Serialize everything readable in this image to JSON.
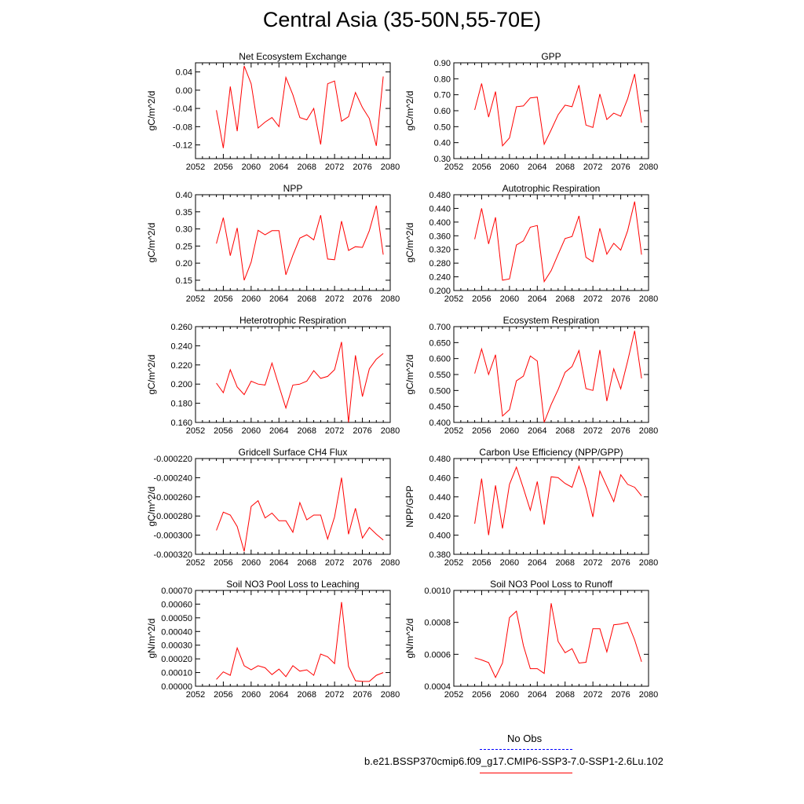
{
  "figure": {
    "title": "Central Asia (35-50N,55-70E)"
  },
  "legend": {
    "entries": [
      {
        "label": "No Obs",
        "color": "#0000ff",
        "dash": "dashed"
      },
      {
        "label": "b.e21.BSSP370cmip6.f09_g17.CMIP6-SSP3-7.0-SSP1-2.6Lu.102",
        "color": "#ff0000",
        "dash": "solid"
      }
    ]
  },
  "chart_data": [
    {
      "type": "line",
      "title": "Net Ecosystem Exchange",
      "ylabel": "gC/m^2/d",
      "xlim": [
        2052,
        2080
      ],
      "xticks": [
        "2052",
        "2056",
        "2060",
        "2064",
        "2068",
        "2072",
        "2076",
        "2080"
      ],
      "ylim": [
        -0.15,
        0.06
      ],
      "yticks": [
        "0.04",
        "0.00",
        "-0.04",
        "-0.08",
        "-0.12"
      ],
      "ytick_values": [
        0.04,
        0.0,
        -0.04,
        -0.08,
        -0.12
      ],
      "x": [
        2055,
        2056,
        2057,
        2058,
        2059,
        2060,
        2061,
        2062,
        2063,
        2064,
        2065,
        2066,
        2067,
        2068,
        2069,
        2070,
        2071,
        2072,
        2073,
        2074,
        2075,
        2076,
        2077,
        2078,
        2079
      ],
      "series": [
        {
          "name": "b.e21.BSSP370cmip6.f09_g17.CMIP6-SSP3-7.0-SSP1-2.6Lu.102",
          "values": [
            -0.044,
            -0.127,
            0.008,
            -0.09,
            0.053,
            0.014,
            -0.083,
            -0.07,
            -0.06,
            -0.08,
            0.028,
            -0.01,
            -0.06,
            -0.065,
            -0.04,
            -0.119,
            0.014,
            0.02,
            -0.068,
            -0.058,
            -0.005,
            -0.038,
            -0.062,
            -0.122,
            0.03
          ]
        }
      ]
    },
    {
      "type": "line",
      "title": "GPP",
      "ylabel": "gC/m^2/d",
      "xlim": [
        2052,
        2080
      ],
      "xticks": [
        "2052",
        "2056",
        "2060",
        "2064",
        "2068",
        "2072",
        "2076",
        "2080"
      ],
      "ylim": [
        0.3,
        0.9
      ],
      "yticks": [
        "0.90",
        "0.80",
        "0.70",
        "0.60",
        "0.50",
        "0.40",
        "0.30"
      ],
      "ytick_values": [
        0.9,
        0.8,
        0.7,
        0.6,
        0.5,
        0.4,
        0.3
      ],
      "x": [
        2055,
        2056,
        2057,
        2058,
        2059,
        2060,
        2061,
        2062,
        2063,
        2064,
        2065,
        2066,
        2067,
        2068,
        2069,
        2070,
        2071,
        2072,
        2073,
        2074,
        2075,
        2076,
        2077,
        2078,
        2079
      ],
      "series": [
        {
          "name": "b.e21.BSSP370cmip6.f09_g17.CMIP6-SSP3-7.0-SSP1-2.6Lu.102",
          "values": [
            0.605,
            0.77,
            0.56,
            0.72,
            0.38,
            0.43,
            0.625,
            0.63,
            0.68,
            0.685,
            0.39,
            0.48,
            0.575,
            0.635,
            0.625,
            0.76,
            0.51,
            0.495,
            0.705,
            0.545,
            0.585,
            0.565,
            0.675,
            0.83,
            0.525
          ]
        }
      ]
    },
    {
      "type": "line",
      "title": "NPP",
      "ylabel": "gC/m^2/d",
      "xlim": [
        2052,
        2080
      ],
      "xticks": [
        "2052",
        "2056",
        "2060",
        "2064",
        "2068",
        "2072",
        "2076",
        "2080"
      ],
      "ylim": [
        0.12,
        0.4
      ],
      "yticks": [
        "0.40",
        "0.35",
        "0.30",
        "0.25",
        "0.20",
        "0.15"
      ],
      "ytick_values": [
        0.4,
        0.35,
        0.3,
        0.25,
        0.2,
        0.15
      ],
      "x": [
        2055,
        2056,
        2057,
        2058,
        2059,
        2060,
        2061,
        2062,
        2063,
        2064,
        2065,
        2066,
        2067,
        2068,
        2069,
        2070,
        2071,
        2072,
        2073,
        2074,
        2075,
        2076,
        2077,
        2078,
        2079
      ],
      "series": [
        {
          "name": "b.e21.BSSP370cmip6.f09_g17.CMIP6-SSP3-7.0-SSP1-2.6Lu.102",
          "values": [
            0.257,
            0.333,
            0.222,
            0.303,
            0.15,
            0.203,
            0.296,
            0.283,
            0.295,
            0.295,
            0.166,
            0.223,
            0.273,
            0.283,
            0.268,
            0.34,
            0.212,
            0.21,
            0.323,
            0.237,
            0.248,
            0.246,
            0.295,
            0.368,
            0.225
          ]
        }
      ]
    },
    {
      "type": "line",
      "title": "Autotrophic Respiration",
      "ylabel": "gC/m^2/d",
      "xlim": [
        2052,
        2080
      ],
      "xticks": [
        "2052",
        "2056",
        "2060",
        "2064",
        "2068",
        "2072",
        "2076",
        "2080"
      ],
      "ylim": [
        0.2,
        0.48
      ],
      "yticks": [
        "0.480",
        "0.440",
        "0.400",
        "0.360",
        "0.320",
        "0.280",
        "0.240",
        "0.200"
      ],
      "ytick_values": [
        0.48,
        0.44,
        0.4,
        0.36,
        0.32,
        0.28,
        0.24,
        0.2
      ],
      "x": [
        2055,
        2056,
        2057,
        2058,
        2059,
        2060,
        2061,
        2062,
        2063,
        2064,
        2065,
        2066,
        2067,
        2068,
        2069,
        2070,
        2071,
        2072,
        2073,
        2074,
        2075,
        2076,
        2077,
        2078,
        2079
      ],
      "series": [
        {
          "name": "b.e21.BSSP370cmip6.f09_g17.CMIP6-SSP3-7.0-SSP1-2.6Lu.102",
          "values": [
            0.35,
            0.44,
            0.336,
            0.414,
            0.23,
            0.234,
            0.333,
            0.345,
            0.385,
            0.39,
            0.226,
            0.258,
            0.306,
            0.352,
            0.358,
            0.418,
            0.297,
            0.284,
            0.382,
            0.306,
            0.338,
            0.318,
            0.375,
            0.46,
            0.305
          ]
        }
      ]
    },
    {
      "type": "line",
      "title": "Heterotrophic Respiration",
      "ylabel": "gC/m^2/d",
      "xlim": [
        2052,
        2080
      ],
      "xticks": [
        "2052",
        "2056",
        "2060",
        "2064",
        "2068",
        "2072",
        "2076",
        "2080"
      ],
      "ylim": [
        0.16,
        0.26
      ],
      "yticks": [
        "0.260",
        "0.240",
        "0.220",
        "0.200",
        "0.180",
        "0.160"
      ],
      "ytick_values": [
        0.26,
        0.24,
        0.22,
        0.2,
        0.18,
        0.16
      ],
      "x": [
        2055,
        2056,
        2057,
        2058,
        2059,
        2060,
        2061,
        2062,
        2063,
        2064,
        2065,
        2066,
        2067,
        2068,
        2069,
        2070,
        2071,
        2072,
        2073,
        2074,
        2075,
        2076,
        2077,
        2078,
        2079
      ],
      "series": [
        {
          "name": "b.e21.BSSP370cmip6.f09_g17.CMIP6-SSP3-7.0-SSP1-2.6Lu.102",
          "values": [
            0.201,
            0.191,
            0.215,
            0.197,
            0.189,
            0.203,
            0.2,
            0.199,
            0.222,
            0.198,
            0.175,
            0.199,
            0.2,
            0.203,
            0.214,
            0.206,
            0.208,
            0.215,
            0.244,
            0.16,
            0.23,
            0.187,
            0.216,
            0.226,
            0.232
          ]
        }
      ]
    },
    {
      "type": "line",
      "title": "Ecosystem Respiration",
      "ylabel": "gC/m^2/d",
      "xlim": [
        2052,
        2080
      ],
      "xticks": [
        "2052",
        "2056",
        "2060",
        "2064",
        "2068",
        "2072",
        "2076",
        "2080"
      ],
      "ylim": [
        0.4,
        0.7
      ],
      "yticks": [
        "0.700",
        "0.650",
        "0.600",
        "0.550",
        "0.500",
        "0.450",
        "0.400"
      ],
      "ytick_values": [
        0.7,
        0.65,
        0.6,
        0.55,
        0.5,
        0.45,
        0.4
      ],
      "x": [
        2055,
        2056,
        2057,
        2058,
        2059,
        2060,
        2061,
        2062,
        2063,
        2064,
        2065,
        2066,
        2067,
        2068,
        2069,
        2070,
        2071,
        2072,
        2073,
        2074,
        2075,
        2076,
        2077,
        2078,
        2079
      ],
      "series": [
        {
          "name": "b.e21.BSSP370cmip6.f09_g17.CMIP6-SSP3-7.0-SSP1-2.6Lu.102",
          "values": [
            0.553,
            0.63,
            0.55,
            0.612,
            0.42,
            0.44,
            0.53,
            0.545,
            0.608,
            0.592,
            0.4,
            0.456,
            0.503,
            0.557,
            0.575,
            0.625,
            0.506,
            0.5,
            0.627,
            0.467,
            0.568,
            0.505,
            0.592,
            0.687,
            0.538
          ]
        }
      ]
    },
    {
      "type": "line",
      "title": "Gridcell Surface CH4 Flux",
      "ylabel": "gC/m^2/d",
      "xlim": [
        2052,
        2080
      ],
      "xticks": [
        "2052",
        "2056",
        "2060",
        "2064",
        "2068",
        "2072",
        "2076",
        "2080"
      ],
      "ylim": [
        -0.00032,
        -0.00022
      ],
      "yticks": [
        "-0.000220",
        "-0.000240",
        "-0.000260",
        "-0.000280",
        "-0.000300",
        "-0.000320"
      ],
      "ytick_values": [
        -0.00022,
        -0.00024,
        -0.00026,
        -0.00028,
        -0.0003,
        -0.00032
      ],
      "x": [
        2055,
        2056,
        2057,
        2058,
        2059,
        2060,
        2061,
        2062,
        2063,
        2064,
        2065,
        2066,
        2067,
        2068,
        2069,
        2070,
        2071,
        2072,
        2073,
        2074,
        2075,
        2076,
        2077,
        2078,
        2079
      ],
      "series": [
        {
          "name": "b.e21.BSSP370cmip6.f09_g17.CMIP6-SSP3-7.0-SSP1-2.6Lu.102",
          "values": [
            -0.000295,
            -0.000276,
            -0.000279,
            -0.000291,
            -0.000317,
            -0.00027,
            -0.000264,
            -0.000282,
            -0.000277,
            -0.000285,
            -0.000285,
            -0.000297,
            -0.000266,
            -0.000284,
            -0.000279,
            -0.000279,
            -0.000304,
            -0.000281,
            -0.00024,
            -0.000299,
            -0.000272,
            -0.000303,
            -0.000292,
            -0.000299,
            -0.000305
          ]
        }
      ]
    },
    {
      "type": "line",
      "title": "Carbon Use Efficiency (NPP/GPP)",
      "ylabel": "NPP/GPP",
      "xlim": [
        2052,
        2080
      ],
      "xticks": [
        "2052",
        "2056",
        "2060",
        "2064",
        "2068",
        "2072",
        "2076",
        "2080"
      ],
      "ylim": [
        0.38,
        0.48
      ],
      "yticks": [
        "0.480",
        "0.460",
        "0.440",
        "0.420",
        "0.400",
        "0.380"
      ],
      "ytick_values": [
        0.48,
        0.46,
        0.44,
        0.42,
        0.4,
        0.38
      ],
      "x": [
        2055,
        2056,
        2057,
        2058,
        2059,
        2060,
        2061,
        2062,
        2063,
        2064,
        2065,
        2066,
        2067,
        2068,
        2069,
        2070,
        2071,
        2072,
        2073,
        2074,
        2075,
        2076,
        2077,
        2078,
        2079
      ],
      "series": [
        {
          "name": "b.e21.BSSP370cmip6.f09_g17.CMIP6-SSP3-7.0-SSP1-2.6Lu.102",
          "values": [
            0.412,
            0.459,
            0.4,
            0.452,
            0.407,
            0.453,
            0.471,
            0.449,
            0.426,
            0.456,
            0.411,
            0.461,
            0.46,
            0.454,
            0.45,
            0.472,
            0.449,
            0.419,
            0.467,
            0.451,
            0.435,
            0.463,
            0.453,
            0.45,
            0.441
          ]
        }
      ]
    },
    {
      "type": "line",
      "title": "Soil NO3 Pool Loss to Leaching",
      "ylabel": "gN/m^2/d",
      "xlim": [
        2052,
        2080
      ],
      "xticks": [
        "2052",
        "2056",
        "2060",
        "2064",
        "2068",
        "2072",
        "2076",
        "2080"
      ],
      "ylim": [
        0.0,
        0.0007
      ],
      "yticks": [
        "0.00070",
        "0.00060",
        "0.00050",
        "0.00040",
        "0.00030",
        "0.00020",
        "0.00010",
        "0.00000"
      ],
      "ytick_values": [
        0.0007,
        0.0006,
        0.0005,
        0.0004,
        0.0003,
        0.0002,
        0.0001,
        0.0
      ],
      "x": [
        2055,
        2056,
        2057,
        2058,
        2059,
        2060,
        2061,
        2062,
        2063,
        2064,
        2065,
        2066,
        2067,
        2068,
        2069,
        2070,
        2071,
        2072,
        2073,
        2074,
        2075,
        2076,
        2077,
        2078,
        2079
      ],
      "series": [
        {
          "name": "b.e21.BSSP370cmip6.f09_g17.CMIP6-SSP3-7.0-SSP1-2.6Lu.102",
          "values": [
            5e-05,
            0.000105,
            8e-05,
            0.00028,
            0.00015,
            0.00012,
            0.00015,
            0.000135,
            8.5e-05,
            0.000125,
            7e-05,
            0.00015,
            0.00011,
            0.00012,
            8e-05,
            0.000235,
            0.000215,
            0.000165,
            0.000615,
            0.000145,
            4e-05,
            3.5e-05,
            3.5e-05,
            8e-05,
            0.0001
          ]
        }
      ]
    },
    {
      "type": "line",
      "title": "Soil NO3 Pool Loss to Runoff",
      "ylabel": "gN/m^2/d",
      "xlim": [
        2052,
        2080
      ],
      "xticks": [
        "2052",
        "2056",
        "2060",
        "2064",
        "2068",
        "2072",
        "2076",
        "2080"
      ],
      "ylim": [
        0.0004,
        0.001
      ],
      "yticks": [
        "0.0010",
        "0.0008",
        "0.0006",
        "0.0004"
      ],
      "ytick_values": [
        0.001,
        0.0008,
        0.0006,
        0.0004
      ],
      "x": [
        2055,
        2056,
        2057,
        2058,
        2059,
        2060,
        2061,
        2062,
        2063,
        2064,
        2065,
        2066,
        2067,
        2068,
        2069,
        2070,
        2071,
        2072,
        2073,
        2074,
        2075,
        2076,
        2077,
        2078,
        2079
      ],
      "series": [
        {
          "name": "b.e21.BSSP370cmip6.f09_g17.CMIP6-SSP3-7.0-SSP1-2.6Lu.102",
          "values": [
            0.000578,
            0.000565,
            0.000548,
            0.000455,
            0.000545,
            0.00083,
            0.00087,
            0.000655,
            0.00051,
            0.00051,
            0.00048,
            0.00092,
            0.00068,
            0.00061,
            0.000635,
            0.000545,
            0.00055,
            0.00076,
            0.00076,
            0.000615,
            0.000785,
            0.00079,
            0.0008,
            0.00069,
            0.000553
          ]
        }
      ]
    }
  ]
}
